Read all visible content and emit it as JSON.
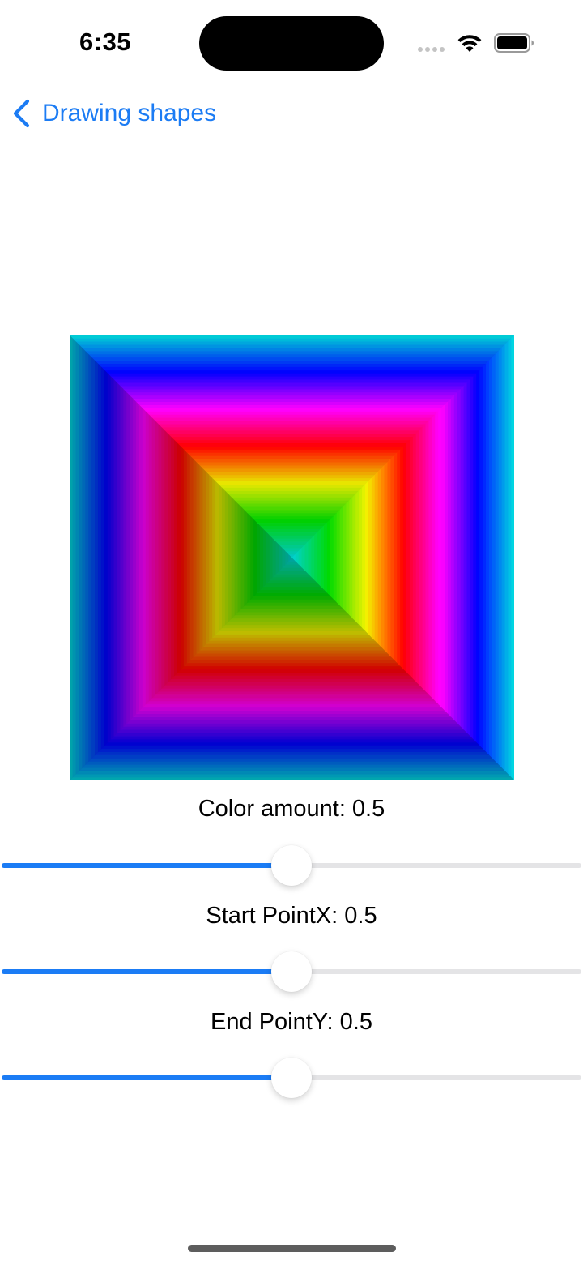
{
  "status_bar": {
    "time": "6:35"
  },
  "nav": {
    "back_label": "Drawing shapes",
    "back_icon": "chevron-left-icon"
  },
  "colors": {
    "accent": "#1c7cf4",
    "slider_fill": "#1b7cf5",
    "slider_track": "#e4e4e6"
  },
  "gradient": {
    "type": "angular-square",
    "ring_colors": [
      "#00d4d4",
      "#0000ff",
      "#ff00ff",
      "#ff0000",
      "#e8e800",
      "#00d000",
      "#00c8c8"
    ]
  },
  "controls": [
    {
      "label": "Color amount: 0.5",
      "value": 0.5
    },
    {
      "label": "Start PointX: 0.5",
      "value": 0.5
    },
    {
      "label": "End PointY: 0.5",
      "value": 0.5
    }
  ]
}
